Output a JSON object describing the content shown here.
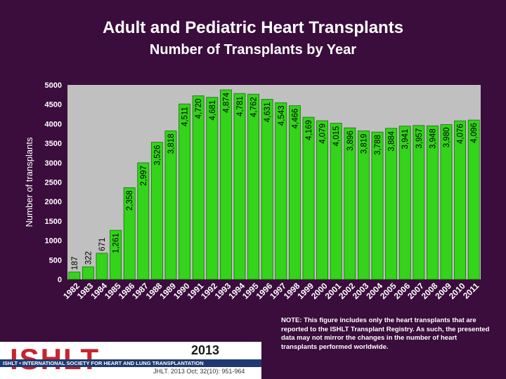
{
  "header": {
    "title": "Adult and Pediatric Heart Transplants",
    "subtitle": "Number of Transplants by Year"
  },
  "chart_data": {
    "type": "bar",
    "title": "Adult and Pediatric Heart Transplants",
    "subtitle": "Number of Transplants by Year",
    "xlabel": "",
    "ylabel": "Number of transplants",
    "ylim": [
      0,
      5000
    ],
    "yticks": [
      0,
      500,
      1000,
      1500,
      2000,
      2500,
      3000,
      3500,
      4000,
      4500,
      5000
    ],
    "grid": false,
    "categories": [
      "1982",
      "1983",
      "1984",
      "1985",
      "1986",
      "1987",
      "1988",
      "1989",
      "1990",
      "1991",
      "1992",
      "1993",
      "1994",
      "1995",
      "1996",
      "1997",
      "1998",
      "1999",
      "2000",
      "2001",
      "2002",
      "2003",
      "2004",
      "2005",
      "2006",
      "2007",
      "2008",
      "2009",
      "2010",
      "2011"
    ],
    "values": [
      187,
      322,
      671,
      1261,
      2358,
      2997,
      3526,
      3818,
      4511,
      4720,
      4681,
      4874,
      4781,
      4762,
      4631,
      4543,
      4466,
      4169,
      4079,
      4015,
      3896,
      3819,
      3788,
      3884,
      3941,
      3957,
      3948,
      3980,
      4076,
      4096
    ],
    "value_labels": [
      "187",
      "322",
      "671",
      "1,261",
      "2,358",
      "2,997",
      "3,526",
      "3,818",
      "4,511",
      "4,720",
      "4,681",
      "4,874",
      "4,781",
      "4,762",
      "4,631",
      "4,543",
      "4,466",
      "4,169",
      "4,079",
      "4,015",
      "3,896",
      "3,819",
      "3,788",
      "3,884",
      "3,941",
      "3,957",
      "3,948",
      "3,980",
      "4,076",
      "4,096"
    ],
    "colors": {
      "bar": "#33d41a",
      "bar_edge": "#1a6e0c",
      "plot_bg": "#c0c0c0",
      "text": "#000000",
      "axis_text": "#ffffff"
    }
  },
  "note": "NOTE: This figure includes only the heart transplants that are reported to the ISHLT Transplant Registry. As such, the presented data may not mirror the changes in the number of heart transplants performed worldwide.",
  "footer": {
    "logo_text": "ISHLT",
    "logo_tagline": "ISHLT • INTERNATIONAL SOCIETY FOR HEART AND LUNG TRANSPLANTATION",
    "year": "2013",
    "citation": "JHLT. 2013 Oct; 32(10): 951-964"
  }
}
